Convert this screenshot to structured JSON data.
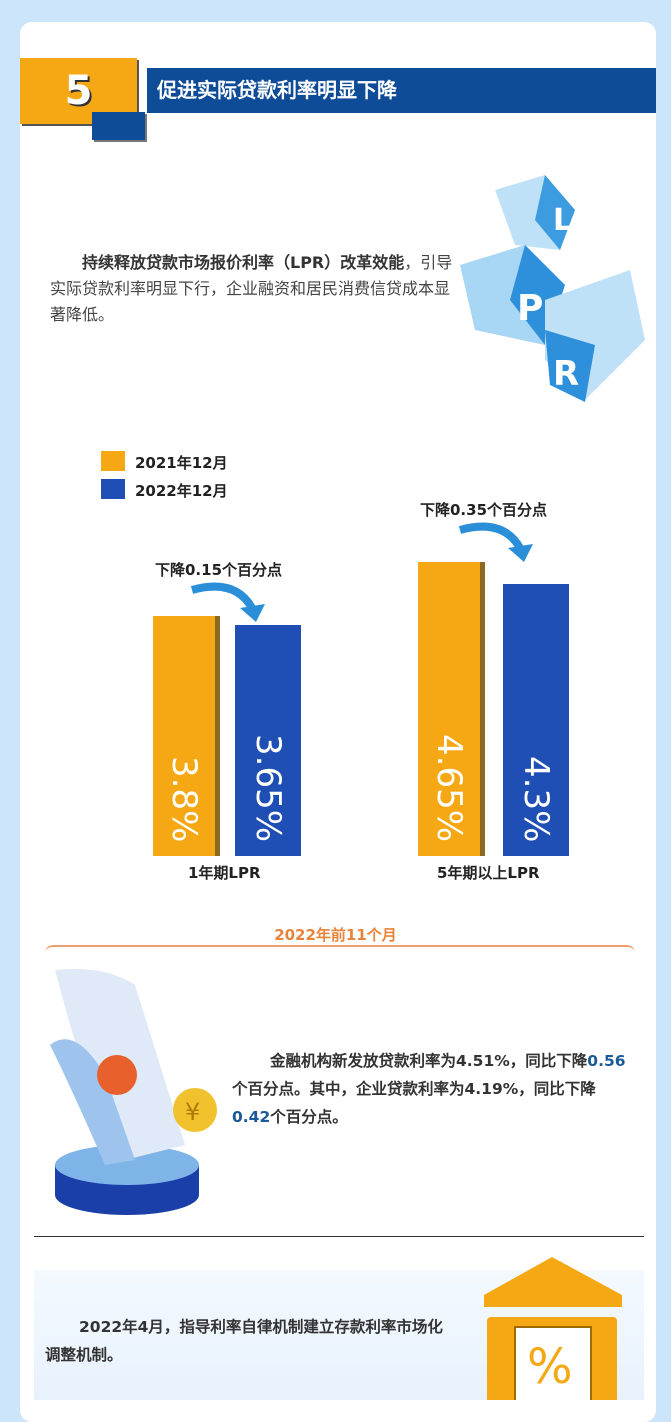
{
  "header": {
    "number": "5",
    "title": "促进实际贷款利率明显下降"
  },
  "intro": {
    "bold": "持续释放贷款市场报价利率（LPR）改革效能",
    "rest": "，引导实际贷款利率明显下行，企业融资和居民消费信贷成本显著降低。",
    "cube_letters": [
      "L",
      "P",
      "R"
    ]
  },
  "chart_data": {
    "type": "bar",
    "categories": [
      "1年期LPR",
      "5年期以上LPR"
    ],
    "series": [
      {
        "name": "2021年12月",
        "values": [
          3.8,
          4.65
        ],
        "labels": [
          "3.8%",
          "4.65%"
        ],
        "color": "#f5a814"
      },
      {
        "name": "2022年12月",
        "values": [
          3.65,
          4.3
        ],
        "labels": [
          "3.65%",
          "4.3%"
        ],
        "color": "#1f4fb5"
      }
    ],
    "annotations": [
      "下降0.15个百分点",
      "下降0.35个百分点"
    ],
    "legend": "top-left",
    "grid": false
  },
  "section2": {
    "heading": "2022年前11个月",
    "t1": "金融机构新发放贷款利率为4.51%，同比下降",
    "v1": "0.56",
    "t2": "个百分点。其中，企业贷款利率为4.19%，同比下降",
    "v2": "0.42",
    "t3": "个百分点。",
    "coin": "¥"
  },
  "section3": {
    "text": "2022年4月，指导利率自律机制建立存款利率市场化调整机制。",
    "icon": "%"
  },
  "colors": {
    "orange": "#f5a814",
    "blue": "#1f4fb5",
    "navy": "#0e4c97",
    "accent_text": "#e8843a"
  }
}
